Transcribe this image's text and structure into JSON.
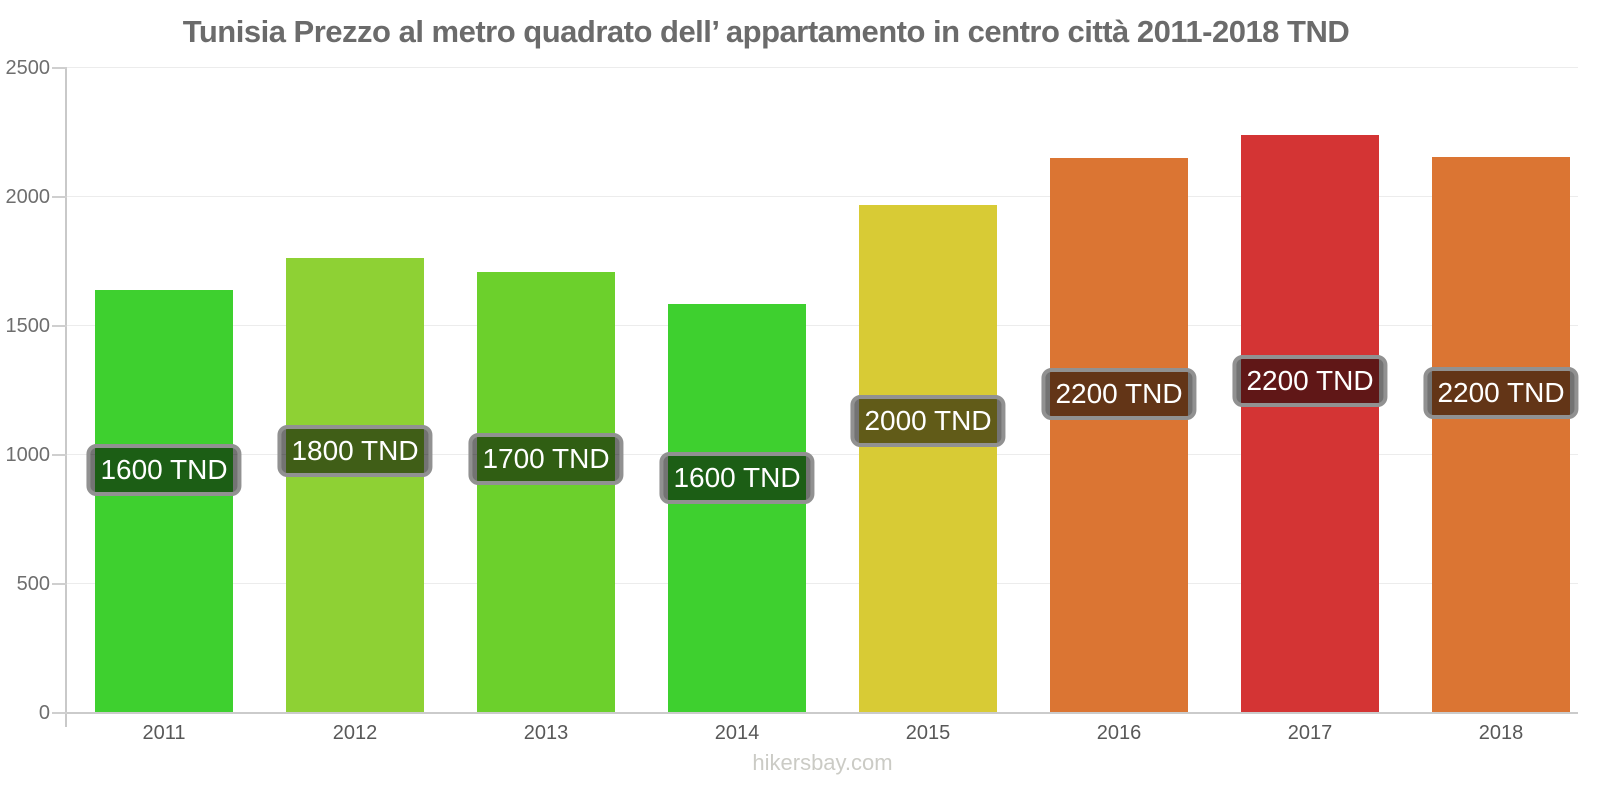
{
  "title": "Tunisia Prezzo al metro quadrato dell’ appartamento in centro città 2011-2018 TND",
  "footer": "hikersbay.com",
  "chart_data": {
    "type": "bar",
    "title": "Tunisia Prezzo al metro quadrato dell’ appartamento in centro città 2011-2018 TND",
    "categories": [
      "2011",
      "2012",
      "2013",
      "2014",
      "2015",
      "2016",
      "2017",
      "2018"
    ],
    "values": [
      1640,
      1765,
      1710,
      1585,
      1970,
      2150,
      2240,
      2155
    ],
    "bar_labels": [
      "1600 TND",
      "1800 TND",
      "1700 TND",
      "1600 TND",
      "2000 TND",
      "2200 TND",
      "2200 TND",
      "2200 TND"
    ],
    "bar_colors": [
      "#3ed02f",
      "#8ed134",
      "#6cd02c",
      "#3ed02f",
      "#d8cb35",
      "#db7533",
      "#d43434",
      "#db7533"
    ],
    "unit": "TND",
    "xlabel": "",
    "ylabel": "",
    "ylim": [
      0,
      2500
    ],
    "yticks": [
      0,
      500,
      1000,
      1500,
      2000,
      2500
    ],
    "grid": true,
    "legend": "none"
  },
  "style": {
    "title_color": "#6b6b6b",
    "axis_line_color": "#c9c9c9",
    "gridline_color": "#ececec",
    "y_label_color": "#6e6e6e",
    "x_label_color": "#585858",
    "pill_bg": "rgba(0,0,0,0.55)",
    "pill_border": "#919191",
    "pill_text_color": "#ffffff",
    "footer_color": "#cbcbc5"
  }
}
